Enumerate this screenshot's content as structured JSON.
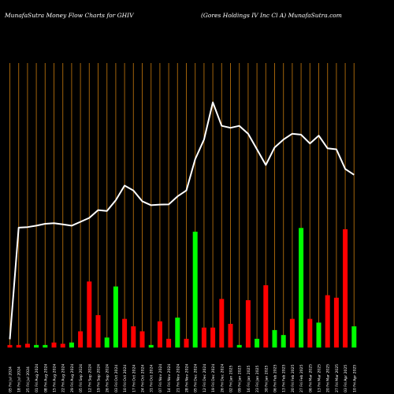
{
  "header": {
    "title": "MunafaSutra  Money Flow  Charts for GHIV",
    "subtitle": "(Gores Holdings IV Inc Cl A) MunafaSutra.com"
  },
  "colors": {
    "background": "#000000",
    "grid": "#a0620a",
    "line": "#ffffff",
    "up_bar": "#00ff00",
    "down_bar": "#ff0000",
    "text": "#ffffff"
  },
  "chart_data": {
    "type": "bar",
    "title": "MunafaSutra  Money Flow  Charts for GHIV",
    "subtitle": "(Gores Holdings IV Inc Cl A) MunafaSutra.com",
    "grid": true,
    "categories": [
      "05 Fri Jul 2024",
      "18 Fri Jul 2024",
      "25 Fri Jul 2024",
      "01 Fri Aug 2024",
      "08 Fri Aug 2024",
      "15 Fri Aug 2024",
      "22 Fri Aug 2024",
      "29 Fri Aug 2024",
      "05 Fri Sep 2024",
      "12 Fri Sep 2024",
      "19 Fri Sep 2024",
      "26 Fri Sep 2024",
      "03 Fri Oct 2024",
      "10 Fri Oct 2024",
      "17 Fri Oct 2024",
      "24 Fri Oct 2024",
      "31 Fri Oct 2024",
      "07 Fri Nov 2024",
      "14 Fri Nov 2024",
      "21 Fri Nov 2024",
      "28 Fri Nov 2024",
      "05 Fri Dec 2024",
      "12 Fri Dec 2024",
      "19 Fri Dec 2024",
      "26 Fri Dec 2024",
      "02 Fri Jan 2025",
      "09 Fri Jan 2025",
      "16 Fri Jan 2025",
      "23 Fri Jan 2025",
      "30 Fri Jan 2025",
      "06 Fri Feb 2025",
      "13 Fri Feb 2025",
      "20 Fri Feb 2025",
      "27 Fri Feb 2025",
      "06 Fri Mar 2025",
      "13 Fri Mar 2025",
      "20 Fri Mar 2025",
      "27 Fri Mar 2025",
      "03 Fri Apr 2025",
      "10 Fri Apr 2025"
    ],
    "bars": {
      "name": "Money Flow",
      "values": [
        2,
        2,
        3,
        2,
        2,
        4,
        3,
        4,
        13,
        53,
        26,
        8,
        49,
        23,
        17,
        13,
        2,
        21,
        7,
        24,
        7,
        93,
        16,
        16,
        39,
        19,
        2,
        38,
        7,
        50,
        14,
        10,
        23,
        96,
        23,
        20,
        42,
        40,
        95,
        17
      ],
      "direction": [
        "down",
        "down",
        "down",
        "up",
        "up",
        "down",
        "down",
        "up",
        "down",
        "down",
        "down",
        "up",
        "up",
        "down",
        "down",
        "down",
        "up",
        "down",
        "down",
        "up",
        "down",
        "up",
        "down",
        "down",
        "down",
        "down",
        "up",
        "down",
        "up",
        "down",
        "up",
        "up",
        "down",
        "up",
        "down",
        "up",
        "down",
        "down",
        "down",
        "up"
      ],
      "ylim": [
        0,
        100
      ]
    },
    "line": {
      "name": "Price",
      "values": [
        3,
        60,
        60.3,
        61,
        62,
        62.3,
        61.7,
        61,
        63,
        65,
        69,
        68.5,
        74,
        81.5,
        79,
        73.5,
        71.5,
        71.8,
        71.9,
        76,
        79,
        95,
        105,
        124,
        112,
        111,
        112,
        108,
        100,
        92,
        101,
        105,
        108,
        107.5,
        103,
        107,
        100.5,
        100,
        90,
        87
      ],
      "ylim": [
        0,
        130
      ]
    }
  }
}
